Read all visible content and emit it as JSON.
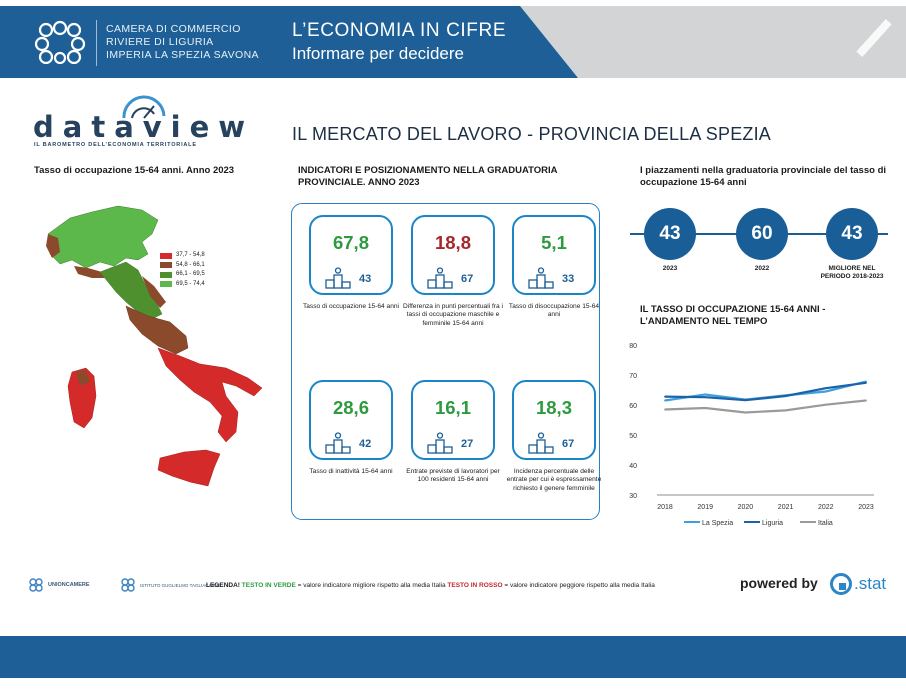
{
  "header": {
    "org_line1": "CAMERA DI COMMERCIO",
    "org_line2": "RIVIERE DI LIGURIA",
    "org_line3": "IMPERIA LA SPEZIA SAVONA",
    "title": "L’ECONOMIA  IN  CIFRE",
    "subtitle": "Informare per decidere"
  },
  "dataview": {
    "logo_text": "dataview",
    "tagline": "IL BAROMETRO DELL’ECONOMIA TERRITORIALE"
  },
  "main_title": "IL MERCATO DEL LAVORO - PROVINCIA DELLA SPEZIA",
  "map": {
    "title": "Tasso di occupazione 15-64 anni. Anno 2023",
    "legend": [
      {
        "label": "37,7 - 54,8",
        "color": "#d42a2a"
      },
      {
        "label": "54,8 - 66,1",
        "color": "#8b4a2b"
      },
      {
        "label": "66,1 - 69,5",
        "color": "#4e8f2e"
      },
      {
        "label": "69,5 - 74,4",
        "color": "#5cb84a"
      }
    ]
  },
  "indicators": {
    "title": "INDICATORI E POSIZIONAMENTO NELLA GRADUATORIA PROVINCIALE. ANNO 2023",
    "items": [
      {
        "value": "67,8",
        "rank": "43",
        "tone": "green",
        "label": "Tasso di occupazione 15-64 anni"
      },
      {
        "value": "18,8",
        "rank": "67",
        "tone": "red",
        "label": "Differenza in punti percentuali fra i tassi di occupazione maschile e femminile 15-64 anni"
      },
      {
        "value": "5,1",
        "rank": "33",
        "tone": "green",
        "label": "Tasso di disoccupazione 15-64 anni"
      },
      {
        "value": "28,6",
        "rank": "42",
        "tone": "green",
        "label": "Tasso di inattività 15-64 anni"
      },
      {
        "value": "16,1",
        "rank": "27",
        "tone": "green",
        "label": "Entrate previste di lavoratori per 100 residenti 15-64 anni"
      },
      {
        "value": "18,3",
        "rank": "67",
        "tone": "green",
        "label": "Incidenza percentuale delle entrate per cui è espressamente richiesto il genere femminile"
      }
    ]
  },
  "placements": {
    "title": "I piazzamenti nella graduatoria provinciale del tasso di occupazione 15-64 anni",
    "items": [
      {
        "value": "43",
        "label": "2023"
      },
      {
        "value": "60",
        "label": "2022"
      },
      {
        "value": "43",
        "label": "MIGLIORE NEL PERIODO 2018-2023"
      }
    ]
  },
  "trend_title": "IL TASSO DI OCCUPAZIONE 15-64 ANNI - L’ANDAMENTO NEL TEMPO",
  "chart_data": {
    "type": "line",
    "title": "IL TASSO DI OCCUPAZIONE 15-64 ANNI - L’ANDAMENTO NEL TEMPO",
    "categories": [
      "2018",
      "2019",
      "2020",
      "2021",
      "2022",
      "2023"
    ],
    "ylim": [
      30,
      80
    ],
    "yticks": [
      30,
      40,
      50,
      60,
      70,
      80
    ],
    "grid": false,
    "legend_position": "bottom",
    "series": [
      {
        "name": "La Spezia",
        "color": "#3f9fdc",
        "values": [
          61.5,
          63.5,
          61.8,
          63.2,
          64.5,
          67.8
        ]
      },
      {
        "name": "Liguria",
        "color": "#1b63a8",
        "values": [
          62.8,
          62.6,
          61.6,
          63.0,
          65.6,
          67.4
        ]
      },
      {
        "name": "Italia",
        "color": "#9a9a9a",
        "values": [
          58.5,
          59.0,
          57.5,
          58.2,
          60.1,
          61.5
        ]
      }
    ]
  },
  "footer": {
    "unioncamere": "UNIONCAMERE",
    "istituto": "ISTITUTO GUGLIELMO TAGLIACARNE",
    "legend_label": "LEGENDA!",
    "legend_green": "TESTO IN VERDE",
    "legend_green_desc": " = valore indicatore migliore rispetto alla media Italia ",
    "legend_red": "TESTO IN ROSSO",
    "legend_red_desc": " = valore indicatore peggiore rispetto alla media Italia",
    "powered_by": "powered by",
    "cstat": ".stat"
  }
}
